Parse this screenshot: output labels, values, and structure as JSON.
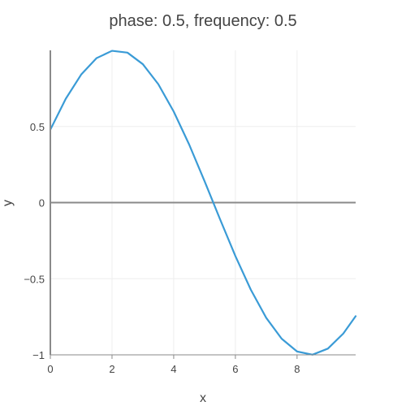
{
  "chart_data": {
    "type": "line",
    "title": "phase: 0.5, frequency: 0.5",
    "xlabel": "x",
    "ylabel": "y",
    "xlim": [
      0,
      9.9
    ],
    "ylim": [
      -1,
      1
    ],
    "x_ticks": [
      0,
      2,
      4,
      6,
      8
    ],
    "x_tick_labels": [
      "0",
      "2",
      "4",
      "6",
      "8"
    ],
    "y_ticks": [
      -1,
      -0.5,
      0,
      0.5
    ],
    "y_tick_labels": [
      "−1",
      "−0.5",
      "0",
      "0.5"
    ],
    "grid": true,
    "series": [
      {
        "color": "#3a9bd6",
        "function": "sin(0.5*x + 0.5)",
        "x": [
          0,
          0.5,
          1,
          1.5,
          2,
          2.5,
          3,
          3.5,
          4,
          4.5,
          5,
          5.5,
          6,
          6.5,
          7,
          7.5,
          8,
          8.5,
          9,
          9.5,
          9.9
        ],
        "y": [
          0.479,
          0.682,
          0.841,
          0.949,
          0.997,
          0.985,
          0.909,
          0.778,
          0.598,
          0.382,
          0.141,
          -0.108,
          -0.351,
          -0.572,
          -0.757,
          -0.894,
          -0.978,
          -0.999,
          -0.959,
          -0.86,
          -0.746
        ]
      }
    ]
  }
}
